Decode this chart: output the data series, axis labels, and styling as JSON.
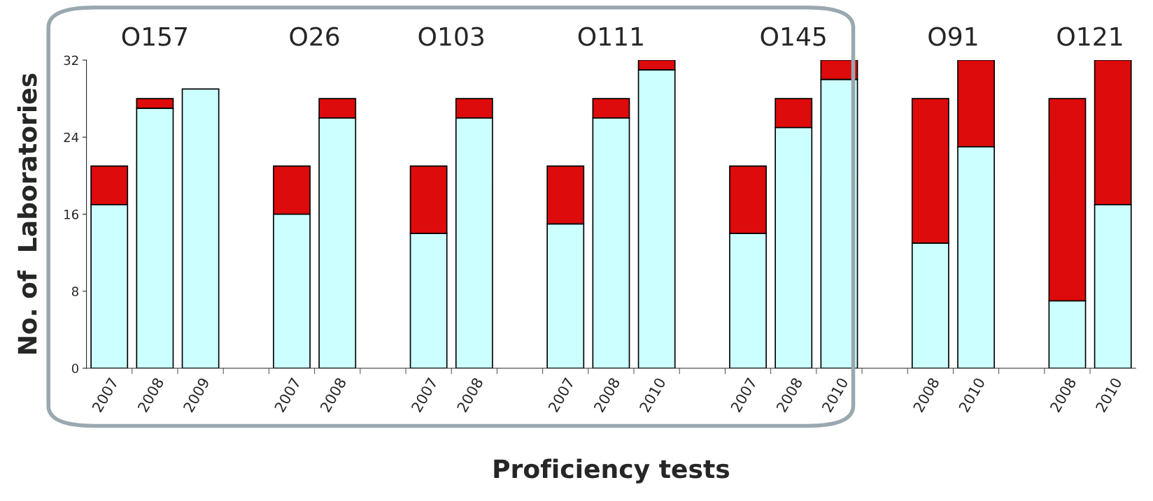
{
  "chart_data": {
    "type": "bar",
    "stacked": true,
    "xlabel": "Proficiency tests",
    "ylabel": "No. of  Laboratories",
    "categories": [
      "2007",
      "2008",
      "2009",
      null,
      "2007",
      "2008",
      null,
      "2007",
      "2008",
      null,
      "2007",
      "2008",
      "2010",
      null,
      "2007",
      "2008",
      "2010",
      null,
      "2008",
      "2010",
      null,
      "2008",
      "2010"
    ],
    "series": [
      {
        "color": "#ccffff",
        "values": [
          17,
          27,
          29,
          null,
          16,
          26,
          null,
          14,
          26,
          null,
          15,
          26,
          31,
          null,
          14,
          25,
          30,
          null,
          13,
          23,
          null,
          7,
          17
        ]
      },
      {
        "color": "#dd0b0b",
        "values": [
          4,
          1,
          null,
          null,
          5,
          2,
          null,
          7,
          2,
          null,
          6,
          2,
          1,
          null,
          7,
          3,
          2,
          null,
          15,
          9,
          null,
          21,
          15
        ]
      }
    ],
    "ylim": [
      0,
      32
    ],
    "yticks": [
      0,
      8,
      16,
      24,
      32
    ],
    "grid": false,
    "legend": false,
    "annotations": [
      "O157",
      "O26",
      "O103",
      "O111",
      "O145",
      "O91",
      "O121"
    ]
  }
}
